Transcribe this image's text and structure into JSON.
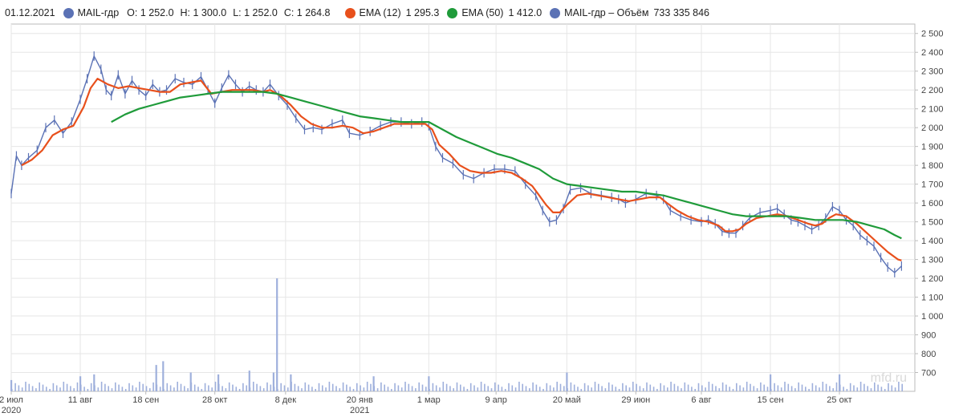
{
  "legend": {
    "date": "01.12.2021",
    "ticker": "MAIL-гдр",
    "open": "O: 1 252.0",
    "high": "H: 1 300.0",
    "low": "L: 1 252.0",
    "close": "C: 1 264.8",
    "ema12_label": "EMA (12)",
    "ema12_value": "1 295.3",
    "ema50_label": "EMA (50)",
    "ema50_value": "1 412.0",
    "volume_label": "MAIL-гдр – Объём",
    "volume_value": "733 335 846"
  },
  "colors": {
    "price": "#5b72b5",
    "ema12": "#e8501c",
    "ema50": "#1f9b3a",
    "volume": "#9fb0dc",
    "grid": "#e6e6e6",
    "axis": "#bbbbbb"
  },
  "watermark": "mfd.ru",
  "chart_data": {
    "type": "line",
    "y_ticks": [
      "2 500",
      "2 400",
      "2 300",
      "2 200",
      "2 100",
      "2 000",
      "1 900",
      "1 800",
      "1 700",
      "1 600",
      "1 500",
      "1 400",
      "1 300",
      "1 200",
      "1 100",
      "1 000",
      "900",
      "800",
      "700"
    ],
    "ylim": [
      600,
      2550
    ],
    "x_ticks": [
      {
        "label": "2 июл",
        "sub": "2020",
        "day": 0
      },
      {
        "label": "11 авг",
        "sub": "",
        "day": 40
      },
      {
        "label": "18 сен",
        "sub": "",
        "day": 78
      },
      {
        "label": "28 окт",
        "sub": "",
        "day": 118
      },
      {
        "label": "8 дек",
        "sub": "",
        "day": 159
      },
      {
        "label": "20 янв",
        "sub": "2021",
        "day": 202
      },
      {
        "label": "1 мар",
        "sub": "",
        "day": 242
      },
      {
        "label": "9 апр",
        "sub": "",
        "day": 281
      },
      {
        "label": "20 май",
        "sub": "",
        "day": 322
      },
      {
        "label": "29 июн",
        "sub": "",
        "day": 362
      },
      {
        "label": "6 авг",
        "sub": "",
        "day": 400
      },
      {
        "label": "15 сен",
        "sub": "",
        "day": 440
      },
      {
        "label": "25 окт",
        "sub": "",
        "day": 480
      }
    ],
    "xlim": [
      0,
      520
    ],
    "series": [
      {
        "name": "MAIL-гдр",
        "points": [
          [
            0,
            1650
          ],
          [
            3,
            1850
          ],
          [
            6,
            1800
          ],
          [
            10,
            1840
          ],
          [
            15,
            1880
          ],
          [
            20,
            2000
          ],
          [
            25,
            2040
          ],
          [
            30,
            1970
          ],
          [
            35,
            2030
          ],
          [
            40,
            2150
          ],
          [
            44,
            2260
          ],
          [
            48,
            2380
          ],
          [
            52,
            2310
          ],
          [
            55,
            2200
          ],
          [
            58,
            2170
          ],
          [
            62,
            2280
          ],
          [
            66,
            2180
          ],
          [
            70,
            2250
          ],
          [
            74,
            2200
          ],
          [
            78,
            2170
          ],
          [
            82,
            2230
          ],
          [
            86,
            2190
          ],
          [
            90,
            2200
          ],
          [
            95,
            2260
          ],
          [
            100,
            2240
          ],
          [
            105,
            2230
          ],
          [
            110,
            2270
          ],
          [
            114,
            2200
          ],
          [
            118,
            2130
          ],
          [
            122,
            2210
          ],
          [
            126,
            2280
          ],
          [
            130,
            2230
          ],
          [
            134,
            2190
          ],
          [
            138,
            2220
          ],
          [
            142,
            2200
          ],
          [
            146,
            2190
          ],
          [
            150,
            2230
          ],
          [
            155,
            2170
          ],
          [
            160,
            2120
          ],
          [
            165,
            2050
          ],
          [
            170,
            1990
          ],
          [
            175,
            2000
          ],
          [
            180,
            1990
          ],
          [
            186,
            2020
          ],
          [
            192,
            2040
          ],
          [
            196,
            1970
          ],
          [
            202,
            1960
          ],
          [
            208,
            1980
          ],
          [
            214,
            2010
          ],
          [
            220,
            2030
          ],
          [
            226,
            2030
          ],
          [
            232,
            2020
          ],
          [
            238,
            2030
          ],
          [
            242,
            2010
          ],
          [
            246,
            1900
          ],
          [
            250,
            1840
          ],
          [
            256,
            1810
          ],
          [
            262,
            1750
          ],
          [
            268,
            1730
          ],
          [
            274,
            1760
          ],
          [
            280,
            1780
          ],
          [
            286,
            1780
          ],
          [
            292,
            1770
          ],
          [
            298,
            1700
          ],
          [
            304,
            1640
          ],
          [
            308,
            1560
          ],
          [
            312,
            1500
          ],
          [
            316,
            1510
          ],
          [
            320,
            1570
          ],
          [
            324,
            1670
          ],
          [
            330,
            1680
          ],
          [
            336,
            1650
          ],
          [
            342,
            1640
          ],
          [
            348,
            1630
          ],
          [
            352,
            1620
          ],
          [
            356,
            1600
          ],
          [
            362,
            1620
          ],
          [
            368,
            1650
          ],
          [
            374,
            1640
          ],
          [
            378,
            1620
          ],
          [
            382,
            1560
          ],
          [
            388,
            1530
          ],
          [
            394,
            1510
          ],
          [
            400,
            1500
          ],
          [
            404,
            1510
          ],
          [
            408,
            1490
          ],
          [
            412,
            1450
          ],
          [
            416,
            1440
          ],
          [
            420,
            1440
          ],
          [
            424,
            1480
          ],
          [
            428,
            1520
          ],
          [
            434,
            1550
          ],
          [
            440,
            1560
          ],
          [
            444,
            1570
          ],
          [
            448,
            1540
          ],
          [
            452,
            1510
          ],
          [
            456,
            1500
          ],
          [
            460,
            1480
          ],
          [
            464,
            1460
          ],
          [
            468,
            1480
          ],
          [
            472,
            1520
          ],
          [
            476,
            1580
          ],
          [
            480,
            1560
          ],
          [
            484,
            1510
          ],
          [
            488,
            1480
          ],
          [
            492,
            1430
          ],
          [
            496,
            1400
          ],
          [
            500,
            1370
          ],
          [
            504,
            1310
          ],
          [
            508,
            1260
          ],
          [
            512,
            1230
          ],
          [
            516,
            1265
          ]
        ]
      },
      {
        "name": "EMA (12)",
        "points": [
          [
            6,
            1800
          ],
          [
            12,
            1830
          ],
          [
            18,
            1880
          ],
          [
            24,
            1960
          ],
          [
            30,
            1990
          ],
          [
            36,
            2010
          ],
          [
            42,
            2110
          ],
          [
            46,
            2210
          ],
          [
            50,
            2260
          ],
          [
            56,
            2230
          ],
          [
            62,
            2210
          ],
          [
            68,
            2220
          ],
          [
            74,
            2210
          ],
          [
            80,
            2200
          ],
          [
            86,
            2190
          ],
          [
            92,
            2190
          ],
          [
            98,
            2230
          ],
          [
            104,
            2240
          ],
          [
            110,
            2250
          ],
          [
            116,
            2180
          ],
          [
            122,
            2190
          ],
          [
            128,
            2200
          ],
          [
            134,
            2200
          ],
          [
            140,
            2200
          ],
          [
            146,
            2190
          ],
          [
            150,
            2200
          ],
          [
            156,
            2170
          ],
          [
            162,
            2120
          ],
          [
            168,
            2060
          ],
          [
            174,
            2020
          ],
          [
            180,
            2000
          ],
          [
            186,
            2000
          ],
          [
            192,
            2010
          ],
          [
            198,
            2000
          ],
          [
            204,
            1970
          ],
          [
            210,
            1980
          ],
          [
            216,
            2000
          ],
          [
            222,
            2020
          ],
          [
            228,
            2020
          ],
          [
            234,
            2020
          ],
          [
            240,
            2020
          ],
          [
            244,
            1990
          ],
          [
            248,
            1910
          ],
          [
            254,
            1860
          ],
          [
            260,
            1800
          ],
          [
            266,
            1770
          ],
          [
            272,
            1760
          ],
          [
            278,
            1760
          ],
          [
            284,
            1770
          ],
          [
            290,
            1760
          ],
          [
            296,
            1730
          ],
          [
            302,
            1690
          ],
          [
            306,
            1640
          ],
          [
            310,
            1590
          ],
          [
            314,
            1550
          ],
          [
            318,
            1550
          ],
          [
            322,
            1590
          ],
          [
            328,
            1640
          ],
          [
            334,
            1650
          ],
          [
            340,
            1640
          ],
          [
            346,
            1630
          ],
          [
            352,
            1620
          ],
          [
            358,
            1610
          ],
          [
            364,
            1620
          ],
          [
            370,
            1630
          ],
          [
            376,
            1630
          ],
          [
            380,
            1600
          ],
          [
            386,
            1560
          ],
          [
            392,
            1530
          ],
          [
            398,
            1510
          ],
          [
            404,
            1500
          ],
          [
            410,
            1480
          ],
          [
            414,
            1450
          ],
          [
            418,
            1450
          ],
          [
            422,
            1460
          ],
          [
            426,
            1490
          ],
          [
            432,
            1520
          ],
          [
            438,
            1530
          ],
          [
            444,
            1540
          ],
          [
            450,
            1530
          ],
          [
            456,
            1510
          ],
          [
            462,
            1490
          ],
          [
            466,
            1480
          ],
          [
            470,
            1490
          ],
          [
            474,
            1520
          ],
          [
            478,
            1540
          ],
          [
            484,
            1530
          ],
          [
            490,
            1490
          ],
          [
            496,
            1440
          ],
          [
            502,
            1390
          ],
          [
            508,
            1340
          ],
          [
            514,
            1300
          ],
          [
            516,
            1295
          ]
        ]
      },
      {
        "name": "EMA (50)",
        "points": [
          [
            58,
            2030
          ],
          [
            66,
            2070
          ],
          [
            74,
            2100
          ],
          [
            82,
            2120
          ],
          [
            90,
            2140
          ],
          [
            98,
            2160
          ],
          [
            106,
            2170
          ],
          [
            114,
            2180
          ],
          [
            122,
            2190
          ],
          [
            130,
            2190
          ],
          [
            138,
            2190
          ],
          [
            146,
            2190
          ],
          [
            154,
            2180
          ],
          [
            162,
            2160
          ],
          [
            170,
            2140
          ],
          [
            178,
            2120
          ],
          [
            186,
            2100
          ],
          [
            194,
            2080
          ],
          [
            202,
            2060
          ],
          [
            210,
            2050
          ],
          [
            218,
            2040
          ],
          [
            226,
            2030
          ],
          [
            234,
            2030
          ],
          [
            242,
            2030
          ],
          [
            250,
            1990
          ],
          [
            258,
            1950
          ],
          [
            266,
            1920
          ],
          [
            274,
            1890
          ],
          [
            282,
            1860
          ],
          [
            290,
            1840
          ],
          [
            298,
            1810
          ],
          [
            306,
            1780
          ],
          [
            314,
            1730
          ],
          [
            322,
            1700
          ],
          [
            330,
            1690
          ],
          [
            338,
            1680
          ],
          [
            346,
            1670
          ],
          [
            354,
            1660
          ],
          [
            362,
            1660
          ],
          [
            370,
            1650
          ],
          [
            378,
            1640
          ],
          [
            386,
            1620
          ],
          [
            394,
            1600
          ],
          [
            402,
            1580
          ],
          [
            410,
            1560
          ],
          [
            418,
            1540
          ],
          [
            426,
            1530
          ],
          [
            434,
            1530
          ],
          [
            442,
            1530
          ],
          [
            450,
            1530
          ],
          [
            458,
            1520
          ],
          [
            466,
            1510
          ],
          [
            474,
            1510
          ],
          [
            482,
            1510
          ],
          [
            490,
            1500
          ],
          [
            498,
            1480
          ],
          [
            506,
            1460
          ],
          [
            512,
            1430
          ],
          [
            516,
            1412
          ]
        ]
      }
    ],
    "volume": {
      "name": "MAIL-гдр – Объём",
      "spikes": [
        [
          0,
          660
        ],
        [
          40,
          680
        ],
        [
          48,
          690
        ],
        [
          84,
          740
        ],
        [
          88,
          760
        ],
        [
          104,
          700
        ],
        [
          120,
          690
        ],
        [
          138,
          710
        ],
        [
          152,
          700
        ],
        [
          154,
          1200
        ],
        [
          162,
          690
        ],
        [
          210,
          680
        ],
        [
          242,
          680
        ],
        [
          322,
          700
        ],
        [
          440,
          690
        ],
        [
          480,
          690
        ]
      ],
      "baseline": 645
    }
  }
}
